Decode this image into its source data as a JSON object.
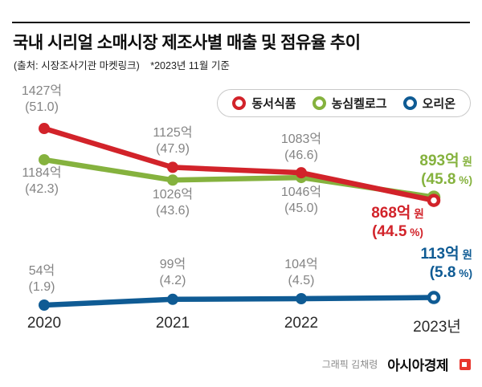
{
  "header": {
    "title": "국내 시리얼 소매시장 제조사별 매출 및 점유율 추이",
    "source": "(출처: 시장조사기관 마켓링크)",
    "asof": "*2023년 11월 기준"
  },
  "legend": [
    {
      "label": "동서식품",
      "color": "#d2232a"
    },
    {
      "label": "농심켈로그",
      "color": "#85b23e"
    },
    {
      "label": "오리온",
      "color": "#0f5b94"
    }
  ],
  "chart_data": {
    "type": "line",
    "title": "국내 시리얼 소매시장 제조사별 매출 및 점유율 추이",
    "x": [
      "2020",
      "2021",
      "2022",
      "2023년"
    ],
    "unit": "억 원 (매출), % (점유율)",
    "legend_position": "top-right",
    "grid": false,
    "series": [
      {
        "name": "동서식품",
        "color": "#d2232a",
        "values": [
          1427,
          1125,
          1083,
          868
        ],
        "share": [
          51.0,
          47.9,
          46.6,
          44.5
        ]
      },
      {
        "name": "농심켈로그",
        "color": "#85b23e",
        "values": [
          1184,
          1026,
          1046,
          893
        ],
        "share": [
          42.3,
          43.6,
          45.0,
          45.8
        ]
      },
      {
        "name": "오리온",
        "color": "#0f5b94",
        "values": [
          54,
          99,
          104,
          113
        ],
        "share": [
          1.9,
          4.2,
          4.5,
          5.8
        ]
      }
    ]
  },
  "annotations": {
    "dongsuh": [
      {
        "v": "1427억",
        "u": "",
        "s": "(51.0)",
        "p": ""
      },
      {
        "v": "1125억",
        "u": "",
        "s": "(47.9)",
        "p": ""
      },
      {
        "v": "1083억",
        "u": "",
        "s": "(46.6)",
        "p": ""
      },
      {
        "v": "868억",
        "u": " 원",
        "s": "(44.5",
        "p": " %)"
      }
    ],
    "kellogg": [
      {
        "v": "1184억",
        "u": "",
        "s": "(42.3)",
        "p": ""
      },
      {
        "v": "1026억",
        "u": "",
        "s": "(43.6)",
        "p": ""
      },
      {
        "v": "1046억",
        "u": "",
        "s": "(45.0)",
        "p": ""
      },
      {
        "v": "893억",
        "u": " 원",
        "s": "(45.8",
        "p": " %)"
      }
    ],
    "orion": [
      {
        "v": "54억",
        "u": "",
        "s": "(1.9)",
        "p": ""
      },
      {
        "v": "99억",
        "u": "",
        "s": "(4.2)",
        "p": ""
      },
      {
        "v": "104억",
        "u": "",
        "s": "(4.5)",
        "p": ""
      },
      {
        "v": "113억",
        "u": " 원",
        "s": "(5.8",
        "p": " %)"
      }
    ]
  },
  "footer": {
    "credit": "그래픽 김채령",
    "brand": "아시아경제"
  }
}
